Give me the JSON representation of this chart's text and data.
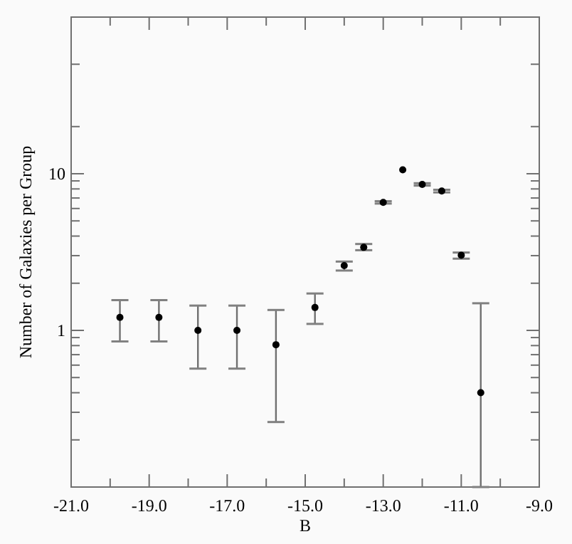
{
  "chart_data": {
    "type": "scatter",
    "xlabel": "B",
    "ylabel": "Number of Galaxies per Group",
    "log": "y",
    "marker": "circle",
    "grid": false,
    "xlim": [
      -21,
      -9
    ],
    "ylim": [
      0.1,
      100
    ],
    "xticks": [
      {
        "value": -21,
        "label": "-21.0"
      },
      {
        "value": -20,
        "label": null
      },
      {
        "value": -19,
        "label": "-19.0"
      },
      {
        "value": -18,
        "label": null
      },
      {
        "value": -17,
        "label": "-17.0"
      },
      {
        "value": -16,
        "label": null
      },
      {
        "value": -15,
        "label": "-15.0"
      },
      {
        "value": -14,
        "label": null
      },
      {
        "value": -13,
        "label": "-13.0"
      },
      {
        "value": -12,
        "label": null
      },
      {
        "value": -11,
        "label": "-11.0"
      },
      {
        "value": -10,
        "label": null
      },
      {
        "value": -9,
        "label": "-9.0"
      }
    ],
    "yticks": [
      {
        "value": 0.2,
        "label": null
      },
      {
        "value": 0.3,
        "label": null
      },
      {
        "value": 0.4,
        "label": null
      },
      {
        "value": 0.5,
        "label": null
      },
      {
        "value": 0.6,
        "label": null
      },
      {
        "value": 0.7,
        "label": null
      },
      {
        "value": 0.8,
        "label": null
      },
      {
        "value": 0.9,
        "label": null
      },
      1,
      {
        "value": 2,
        "label": null
      },
      {
        "value": 3,
        "label": null
      },
      {
        "value": 4,
        "label": null
      },
      {
        "value": 5,
        "label": null
      },
      {
        "value": 6,
        "label": null
      },
      {
        "value": 7,
        "label": null
      },
      {
        "value": 8,
        "label": null
      },
      {
        "value": 9,
        "label": null
      },
      10,
      {
        "value": 20,
        "label": null
      },
      {
        "value": 50,
        "label": null
      }
    ],
    "series": [
      {
        "color": "#000000",
        "x": [
          -19.75,
          -18.75,
          -17.75,
          -16.75,
          -15.75,
          -14.75,
          -14,
          -13.5,
          -13,
          -12.5,
          -12,
          -11.5,
          -11,
          -10.5
        ],
        "values": [
          1.21,
          1.21,
          1.0,
          1.0,
          0.81,
          1.4,
          2.59,
          3.39,
          6.56,
          10.6,
          8.55,
          7.76,
          3.02,
          0.4
        ],
        "errors": [
          [
            0.85,
            1.56
          ],
          [
            0.85,
            1.56
          ],
          [
            0.57,
            1.44
          ],
          [
            0.57,
            1.44
          ],
          [
            0.26,
            1.35
          ],
          [
            1.1,
            1.72
          ],
          [
            2.41,
            2.75
          ],
          [
            3.25,
            3.56
          ],
          [
            6.45,
            6.68
          ],
          null,
          [
            8.4,
            8.7
          ],
          [
            7.6,
            7.9
          ],
          [
            2.87,
            3.14
          ],
          [
            0.1,
            1.49
          ]
        ]
      }
    ]
  }
}
